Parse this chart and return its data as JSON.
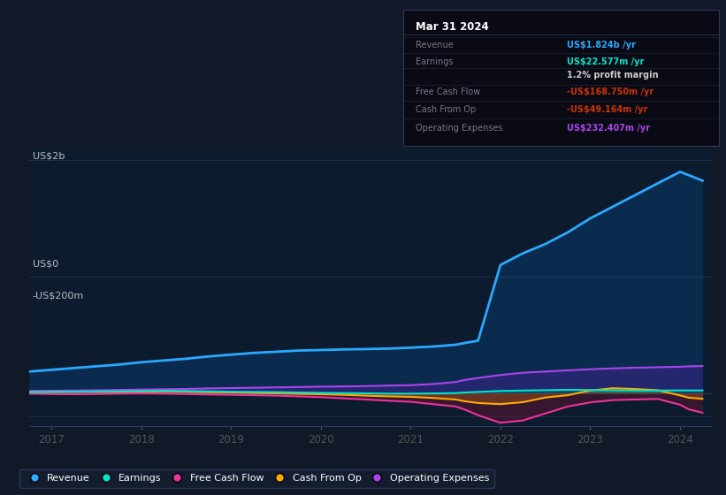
{
  "bg_color": "#111827",
  "plot_bg_color": "#0d1b2e",
  "grid_color": "#1e2d45",
  "legend": [
    {
      "label": "Revenue",
      "color": "#29aaff"
    },
    {
      "label": "Earnings",
      "color": "#00e5cc"
    },
    {
      "label": "Free Cash Flow",
      "color": "#ee3399"
    },
    {
      "label": "Cash From Op",
      "color": "#ffaa00"
    },
    {
      "label": "Operating Expenses",
      "color": "#aa44ee"
    }
  ],
  "series": {
    "x": [
      2016.75,
      2017.0,
      2017.25,
      2017.5,
      2017.75,
      2018.0,
      2018.25,
      2018.5,
      2018.75,
      2019.0,
      2019.25,
      2019.5,
      2019.75,
      2020.0,
      2020.25,
      2020.5,
      2020.75,
      2021.0,
      2021.25,
      2021.5,
      2021.6,
      2021.75,
      2022.0,
      2022.25,
      2022.5,
      2022.75,
      2023.0,
      2023.25,
      2023.5,
      2023.75,
      2024.0,
      2024.1,
      2024.25
    ],
    "revenue": [
      185,
      200,
      215,
      230,
      245,
      265,
      280,
      295,
      315,
      330,
      345,
      355,
      365,
      370,
      375,
      378,
      382,
      390,
      400,
      415,
      430,
      450,
      1100,
      1200,
      1280,
      1380,
      1500,
      1600,
      1700,
      1800,
      1900,
      1870,
      1824
    ],
    "earnings": [
      8,
      10,
      12,
      14,
      16,
      18,
      20,
      18,
      15,
      12,
      10,
      8,
      5,
      2,
      0,
      -2,
      -5,
      -5,
      -3,
      0,
      5,
      10,
      18,
      22,
      25,
      28,
      26,
      24,
      22,
      22,
      23,
      22.577,
      22.577
    ],
    "free_cash_flow": [
      -5,
      -8,
      -10,
      -8,
      -5,
      -3,
      -5,
      -8,
      -12,
      -15,
      -18,
      -22,
      -28,
      -35,
      -45,
      -55,
      -65,
      -75,
      -95,
      -115,
      -140,
      -190,
      -255,
      -235,
      -175,
      -115,
      -80,
      -60,
      -55,
      -50,
      -100,
      -140,
      -168.75
    ],
    "cash_from_op": [
      8,
      10,
      12,
      10,
      8,
      12,
      15,
      12,
      8,
      5,
      2,
      -2,
      -6,
      -10,
      -15,
      -22,
      -28,
      -32,
      -42,
      -55,
      -70,
      -85,
      -95,
      -78,
      -38,
      -18,
      22,
      42,
      35,
      25,
      -20,
      -40,
      -49.164
    ],
    "operating_expenses": [
      18,
      20,
      22,
      24,
      27,
      30,
      33,
      36,
      40,
      43,
      46,
      49,
      52,
      55,
      57,
      60,
      64,
      68,
      78,
      95,
      112,
      130,
      155,
      175,
      185,
      195,
      205,
      212,
      218,
      222,
      226,
      230,
      232.407
    ]
  }
}
